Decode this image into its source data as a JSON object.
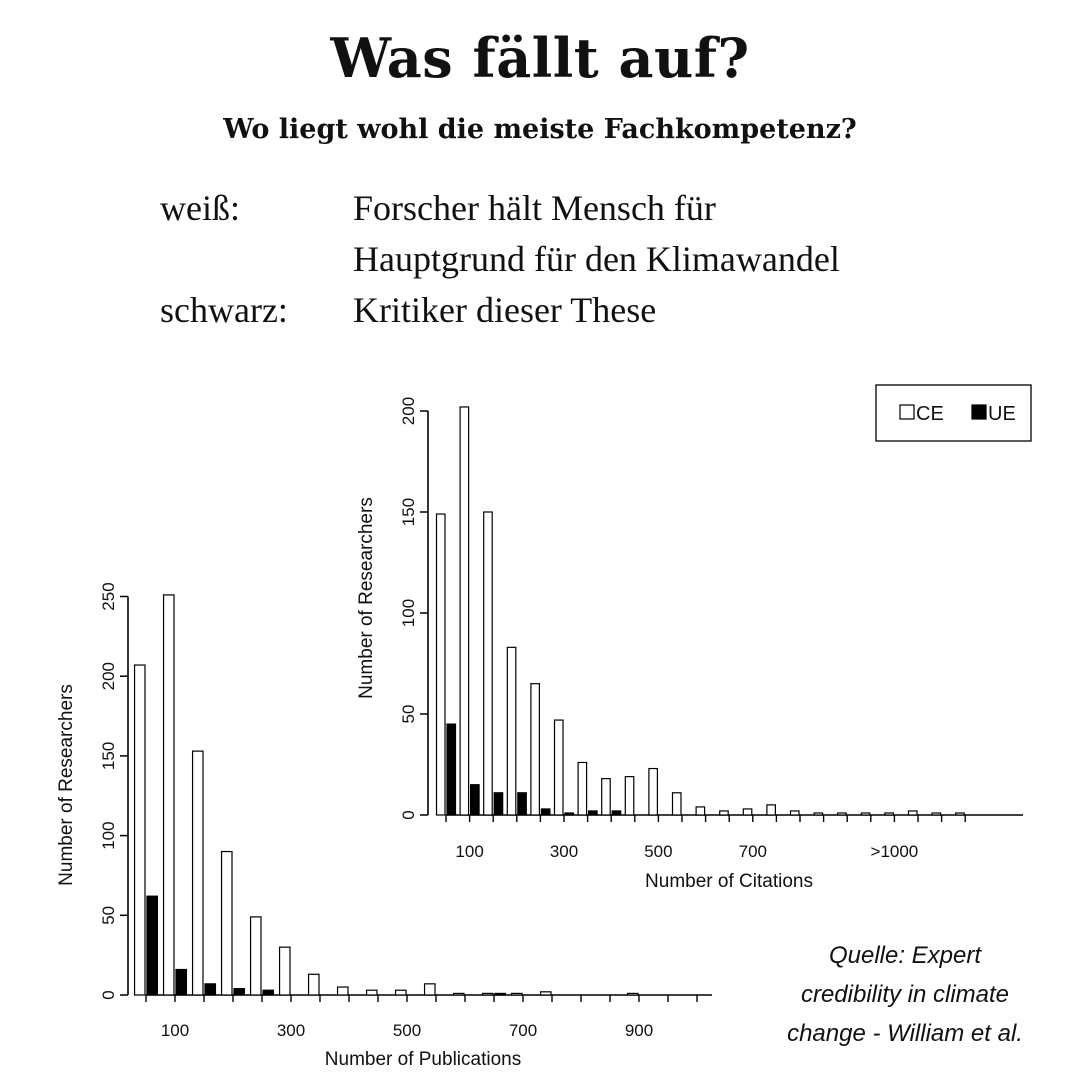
{
  "header": {
    "title": "Was fällt auf?",
    "subtitle": "Wo liegt wohl die meiste Fachkompetenz?"
  },
  "legend_text": {
    "white_label": "weiß:",
    "white_desc_1": "Forscher hält Mensch für",
    "white_desc_2": "Hauptgrund für den Klimawandel",
    "black_label": "schwarz:",
    "black_desc": "Kritiker dieser These"
  },
  "source": {
    "line1": "Quelle: Expert",
    "line2": "credibility in climate",
    "line3": "change - William et al."
  },
  "colors": {
    "ce": "#ffffff",
    "ue": "#000000",
    "axis": "#000000"
  },
  "chart_data": [
    {
      "type": "bar",
      "xlabel": "Number of Publications",
      "ylabel": "Number of Researchers",
      "ylim": [
        0,
        260
      ],
      "yticks": [
        0,
        50,
        100,
        150,
        200,
        250
      ],
      "x": [
        50,
        100,
        150,
        200,
        250,
        300,
        350,
        400,
        450,
        500,
        550,
        600,
        650,
        700,
        750,
        800,
        850,
        900,
        950,
        1000
      ],
      "xtick_labels": [
        "100",
        "300",
        "500",
        "700",
        "900"
      ],
      "xtick_values": [
        100,
        300,
        500,
        700,
        900
      ],
      "series": [
        {
          "name": "CE",
          "values": [
            207,
            251,
            153,
            90,
            49,
            30,
            13,
            5,
            3,
            3,
            7,
            1,
            1,
            1,
            2,
            0,
            0,
            1,
            0,
            0
          ]
        },
        {
          "name": "UE",
          "values": [
            62,
            16,
            7,
            4,
            3,
            0,
            0,
            0,
            0,
            0,
            0,
            0,
            1,
            0,
            0,
            0,
            0,
            0,
            0,
            0
          ]
        }
      ],
      "legend": "none"
    },
    {
      "type": "bar",
      "xlabel": "Number of Citations",
      "ylabel": "Number of Researchers",
      "ylim": [
        0,
        210
      ],
      "yticks": [
        0,
        50,
        100,
        150,
        200
      ],
      "x": [
        50,
        100,
        150,
        200,
        250,
        300,
        350,
        400,
        450,
        500,
        550,
        600,
        650,
        700,
        750,
        800,
        850,
        900,
        950,
        1000,
        1050,
        1100,
        1150
      ],
      "xtick_labels": [
        "100",
        "300",
        "500",
        "700",
        ">1000"
      ],
      "xtick_values": [
        100,
        300,
        500,
        700,
        1000
      ],
      "series": [
        {
          "name": "CE",
          "values": [
            149,
            202,
            150,
            83,
            65,
            47,
            26,
            18,
            19,
            23,
            11,
            4,
            2,
            3,
            5,
            2,
            1,
            1,
            1,
            1,
            2,
            1,
            1
          ]
        },
        {
          "name": "UE",
          "values": [
            45,
            15,
            11,
            11,
            3,
            1,
            2,
            2,
            0,
            0,
            0,
            0,
            0,
            0,
            0,
            0,
            0,
            0,
            0,
            0,
            0,
            0,
            0
          ]
        }
      ],
      "legend": "top-right",
      "legend_labels": [
        "CE",
        "UE"
      ]
    }
  ]
}
